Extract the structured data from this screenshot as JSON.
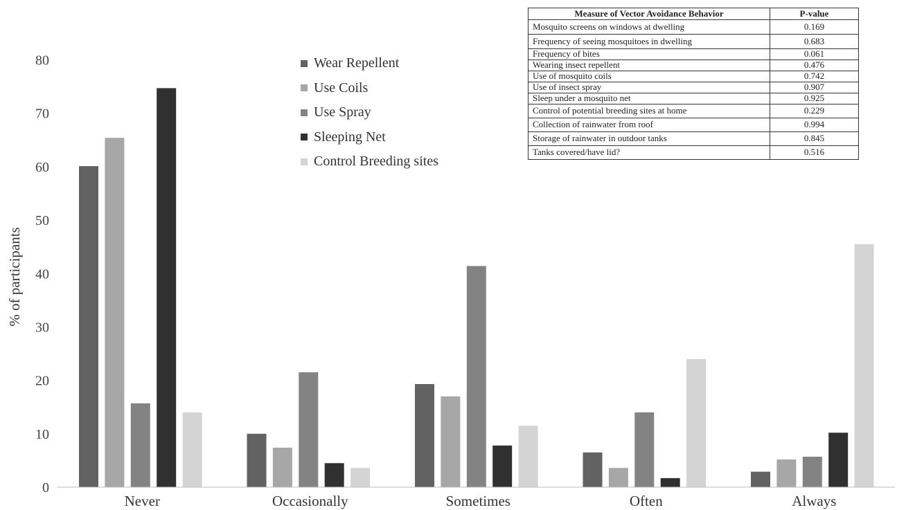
{
  "chart_data": {
    "type": "bar",
    "categories": [
      "Never",
      "Occasionally",
      "Sometimes",
      "Often",
      "Always"
    ],
    "series": [
      {
        "name": "Wear Repellent",
        "color": "#626262",
        "values": [
          60.1,
          10.0,
          19.3,
          6.5,
          2.9
        ]
      },
      {
        "name": "Use Coils",
        "color": "#a7a7a7",
        "values": [
          65.4,
          7.4,
          17.0,
          3.6,
          5.2
        ]
      },
      {
        "name": "Use Spray",
        "color": "#838383",
        "values": [
          15.7,
          21.5,
          41.4,
          14.0,
          5.7
        ]
      },
      {
        "name": "Sleeping Net",
        "color": "#303030",
        "values": [
          74.7,
          4.5,
          7.8,
          1.7,
          10.2
        ]
      },
      {
        "name": "Control Breeding sites",
        "color": "#d4d4d4",
        "values": [
          14.0,
          3.6,
          11.5,
          24.0,
          45.5
        ]
      }
    ],
    "xlabel": "",
    "ylabel": "% of participants",
    "ylim": [
      0,
      80
    ],
    "yticks": [
      0,
      10,
      20,
      30,
      40,
      50,
      60,
      70,
      80
    ],
    "grid": false,
    "legend_position": "top-center"
  },
  "table": {
    "headers": [
      "Measure of Vector Avoidance Behavior",
      "P-value"
    ],
    "rows": [
      {
        "measure": "Mosquito screens on windows at dwelling",
        "p": "0.169"
      },
      {
        "measure": "Frequency of seeing mosquitoes in dwelling",
        "p": "0.683"
      },
      {
        "measure": "Frequency of bites",
        "p": "0.061"
      },
      {
        "measure": "Wearing insect repellent",
        "p": "0.476"
      },
      {
        "measure": "Use of mosquito coils",
        "p": "0.742"
      },
      {
        "measure": "Use of insect spray",
        "p": "0.907"
      },
      {
        "measure": "Sleep under a mosquito net",
        "p": "0.925"
      },
      {
        "measure": "Control of potential breeding sites at home",
        "p": "0.229"
      },
      {
        "measure": "Collection of rainwater from roof",
        "p": "0.994"
      },
      {
        "measure": "Storage of rainwater in outdoor tanks",
        "p": "0.845"
      },
      {
        "measure": "Tanks covered/have lid?",
        "p": "0.516"
      }
    ]
  }
}
